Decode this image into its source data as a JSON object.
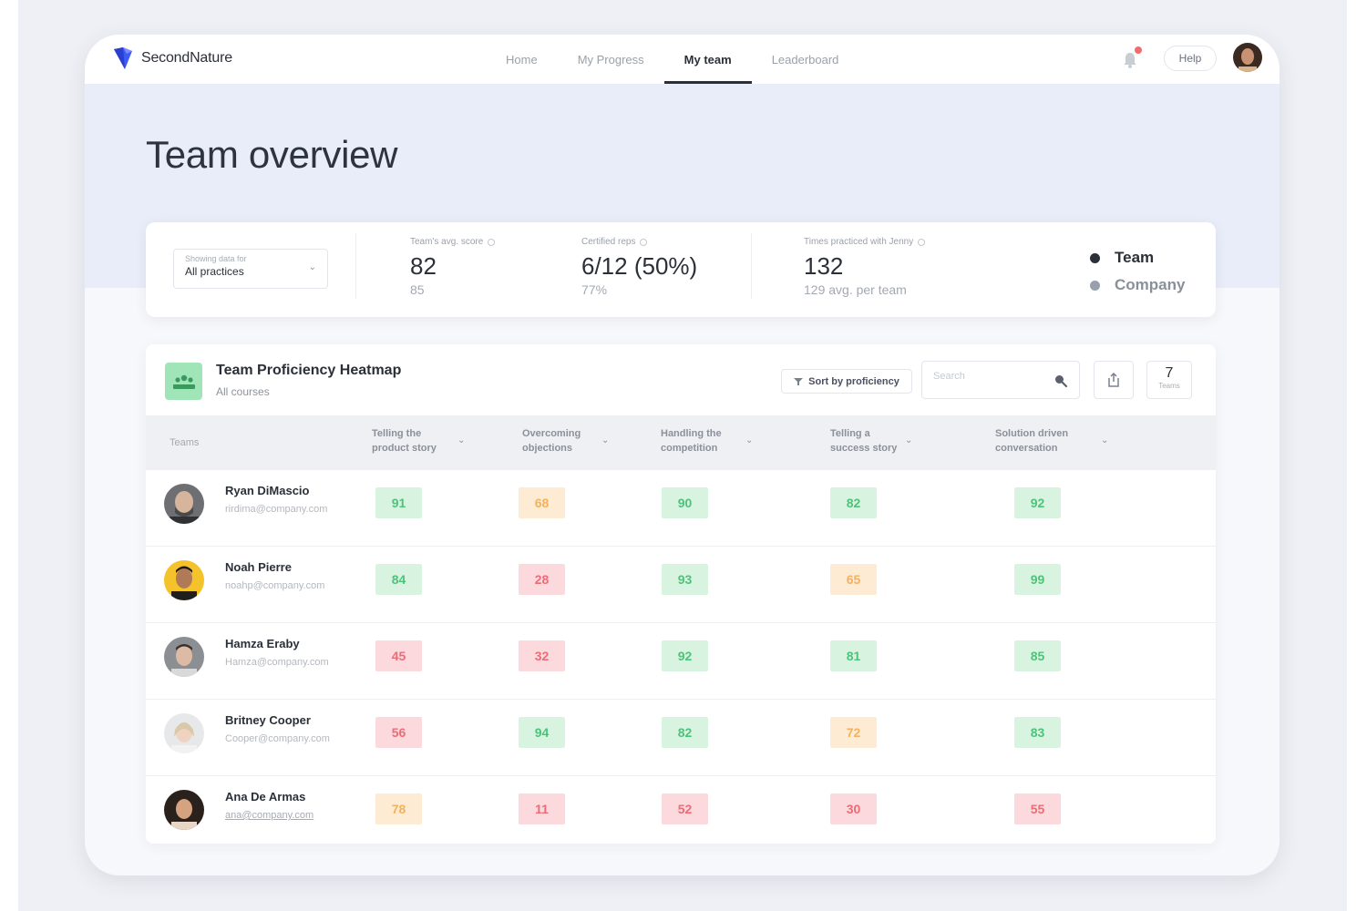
{
  "app": {
    "name": "SecondNature"
  },
  "nav": {
    "items": [
      "Home",
      "My Progress",
      "My team",
      "Leaderboard"
    ],
    "active_index": 2
  },
  "header": {
    "help_label": "Help"
  },
  "page": {
    "title": "Team overview"
  },
  "stats": {
    "filter_label": "Showing data for",
    "filter_value": "All practices",
    "avg_score_label": "Team's avg. score",
    "avg_score_value": "82",
    "avg_score_sub": "85",
    "certified_label": "Certified reps",
    "certified_value": "6/12 (50%)",
    "certified_sub": "77%",
    "practiced_label": "Times practiced with Jenny",
    "practiced_value": "132",
    "practiced_sub": "129 avg. per team",
    "legend": [
      {
        "label": "Team",
        "color": "#2b2f38"
      },
      {
        "label": "Company",
        "color": "#9aa0ab"
      }
    ]
  },
  "heatmap": {
    "title": "Team Proficiency Heatmap",
    "subtitle": "All courses",
    "sort_label": "Sort by proficiency",
    "search_placeholder": "Search",
    "count_value": "7",
    "count_label": "Teams",
    "columns": {
      "first": "Teams",
      "skills": [
        {
          "line1": "Telling the",
          "line2": "product story"
        },
        {
          "line1": "Overcoming",
          "line2": "objections"
        },
        {
          "line1": "Handling the",
          "line2": "competition"
        },
        {
          "line1": "Telling a",
          "line2": "success story"
        },
        {
          "line1": "Solution driven",
          "line2": "conversation"
        }
      ]
    },
    "rows": [
      {
        "name": "Ryan DiMascio",
        "email": "rirdima@company.com",
        "scores": [
          "91",
          "68",
          "90",
          "82",
          "92"
        ],
        "levels": [
          "g",
          "o",
          "g",
          "g",
          "g"
        ]
      },
      {
        "name": "Noah Pierre",
        "email": "noahp@company.com",
        "scores": [
          "84",
          "28",
          "93",
          "65",
          "99"
        ],
        "levels": [
          "g",
          "r",
          "g",
          "o",
          "g"
        ]
      },
      {
        "name": "Hamza Eraby",
        "email": "Hamza@company.com",
        "scores": [
          "45",
          "32",
          "92",
          "81",
          "85"
        ],
        "levels": [
          "r",
          "r",
          "g",
          "g",
          "g"
        ]
      },
      {
        "name": "Britney Cooper",
        "email": "Cooper@company.com",
        "scores": [
          "56",
          "94",
          "82",
          "72",
          "83"
        ],
        "levels": [
          "r",
          "g",
          "g",
          "o",
          "g"
        ]
      },
      {
        "name": "Ana De Armas",
        "email": "ana@company.com",
        "scores": [
          "78",
          "11",
          "52",
          "30",
          "55"
        ],
        "levels": [
          "o",
          "r",
          "r",
          "r",
          "r"
        ]
      }
    ]
  },
  "colors": {
    "good": "#4fc27a",
    "medium": "#f2b25e",
    "low": "#ec6c78",
    "accent": "#2b2f38"
  }
}
